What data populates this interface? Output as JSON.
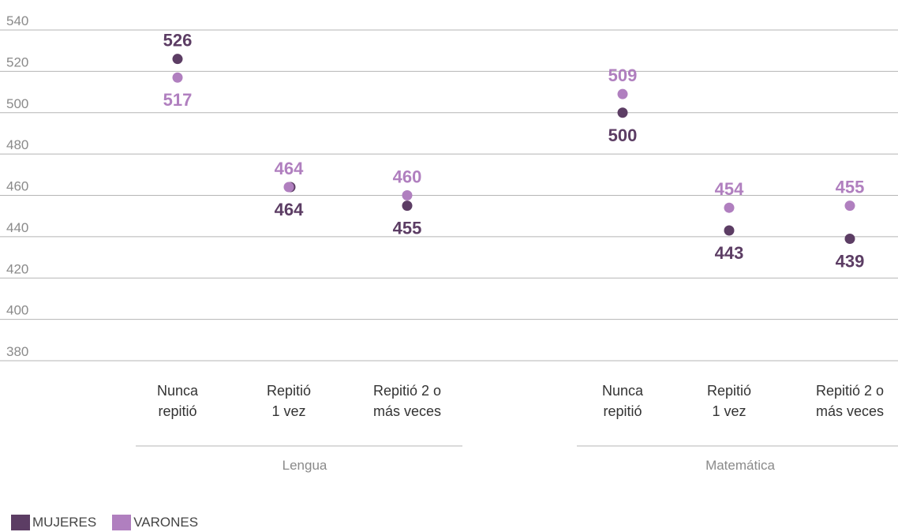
{
  "chart_data": {
    "type": "scatter",
    "y_ticks": [
      "540",
      "520",
      "500",
      "480",
      "460",
      "440",
      "420",
      "400",
      "380"
    ],
    "ylim": [
      380,
      540
    ],
    "grid": true,
    "groups": [
      {
        "label": "Lengua",
        "categories": [
          [
            "Nunca",
            "repitió"
          ],
          [
            "Repitió",
            "1 vez"
          ],
          [
            "Repitió 2 o",
            "más veces"
          ]
        ]
      },
      {
        "label": "Matemática",
        "categories": [
          [
            "Nunca",
            "repitió"
          ],
          [
            "Repitió",
            "1 vez"
          ],
          [
            "Repitió 2 o",
            "más veces"
          ]
        ]
      }
    ],
    "series": [
      {
        "name": "MUJERES",
        "color": "#5c3d64",
        "values": [
          526,
          464,
          455,
          500,
          443,
          439
        ],
        "labels": [
          "526",
          "464",
          "455",
          "500",
          "443",
          "439"
        ]
      },
      {
        "name": "VARONES",
        "color": "#b07fbf",
        "values": [
          517,
          464,
          460,
          509,
          454,
          455
        ],
        "labels": [
          "517",
          "464",
          "460",
          "509",
          "454",
          "455"
        ]
      }
    ]
  }
}
